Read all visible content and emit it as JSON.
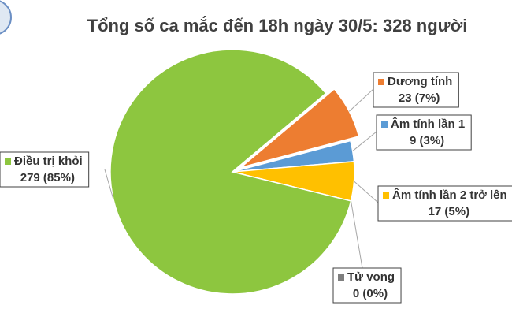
{
  "chart_data": {
    "type": "pie",
    "title": "Tổng số ca mắc đến 18h ngày 30/5: 328 người",
    "categories": [
      "Dương tính",
      "Âm tính lần 1",
      "Âm tính lần 2 trở lên",
      "Tử vong",
      "Điều trị khỏi"
    ],
    "values": [
      23,
      9,
      17,
      0,
      279
    ],
    "value_labels": [
      "23 (7%)",
      "9 (3%)",
      "17 (5%)",
      "0 (0%)",
      "279 (85%)"
    ],
    "colors": [
      "#ed7d31",
      "#5b9bd5",
      "#ffc000",
      "#7f7f7f",
      "#8dc63f"
    ]
  }
}
